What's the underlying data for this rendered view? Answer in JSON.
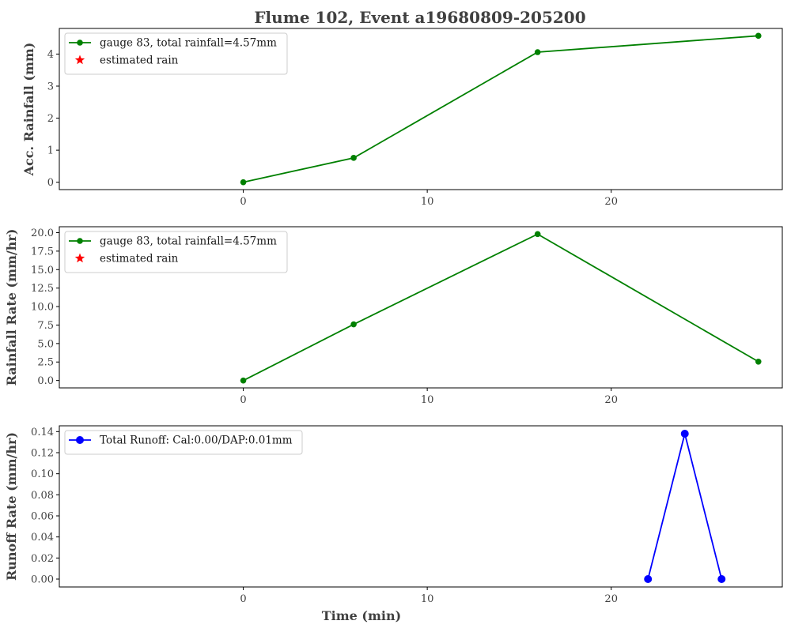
{
  "figure_title": "Flume 102, Event a19680809-205200",
  "colors": {
    "rain": "#008000",
    "estimated": "#ff0000",
    "runoff": "#0000ff",
    "text": "#404040"
  },
  "chart_data": [
    {
      "type": "line",
      "ylabel": "Acc. Rainfall (mm)",
      "xlabel": "",
      "xlim": [
        -10,
        29.3
      ],
      "ylim": [
        -0.23,
        4.8
      ],
      "xticks": [
        0,
        10,
        20
      ],
      "yticks": [
        0,
        1,
        2,
        3,
        4
      ],
      "ytick_labels": [
        "0",
        "1",
        "2",
        "3",
        "4"
      ],
      "legend_position": "upper-left",
      "series": [
        {
          "name": "gauge 83, total rainfall=4.57mm",
          "color": "#008000",
          "marker": "circle",
          "x": [
            0,
            6,
            16,
            28
          ],
          "y": [
            0,
            0.76,
            4.06,
            4.57
          ]
        },
        {
          "name": "estimated rain",
          "color": "#ff0000",
          "marker": "star",
          "x": [],
          "y": []
        }
      ]
    },
    {
      "type": "line",
      "ylabel": "Rainfall Rate (mm/hr)",
      "xlabel": "",
      "xlim": [
        -10,
        29.3
      ],
      "ylim": [
        -1.0,
        20.8
      ],
      "xticks": [
        0,
        10,
        20
      ],
      "yticks": [
        0,
        2.5,
        5,
        7.5,
        10,
        12.5,
        15,
        17.5,
        20
      ],
      "ytick_labels": [
        "0.0",
        "2.5",
        "5.0",
        "7.5",
        "10.0",
        "12.5",
        "15.0",
        "17.5",
        "20.0"
      ],
      "legend_position": "upper-left",
      "series": [
        {
          "name": "gauge 83, total rainfall=4.57mm",
          "color": "#008000",
          "marker": "circle",
          "x": [
            0,
            6,
            16,
            28
          ],
          "y": [
            0,
            7.6,
            19.8,
            2.55
          ]
        },
        {
          "name": "estimated rain",
          "color": "#ff0000",
          "marker": "star",
          "x": [],
          "y": []
        }
      ]
    },
    {
      "type": "line",
      "ylabel": "Runoff Rate (mm/hr)",
      "xlabel": "Time (min)",
      "xlim": [
        -10,
        29.3
      ],
      "ylim": [
        -0.0075,
        0.1455
      ],
      "xticks": [
        0,
        10,
        20
      ],
      "yticks": [
        0,
        0.02,
        0.04,
        0.06,
        0.08,
        0.1,
        0.12,
        0.14
      ],
      "ytick_labels": [
        "0.00",
        "0.02",
        "0.04",
        "0.06",
        "0.08",
        "0.10",
        "0.12",
        "0.14"
      ],
      "legend_position": "upper-left",
      "series": [
        {
          "name": "Total Runoff: Cal:0.00/DAP:0.01mm",
          "color": "#0000ff",
          "marker": "circle-large",
          "x": [
            22,
            24,
            26
          ],
          "y": [
            0,
            0.138,
            0
          ]
        }
      ]
    }
  ]
}
